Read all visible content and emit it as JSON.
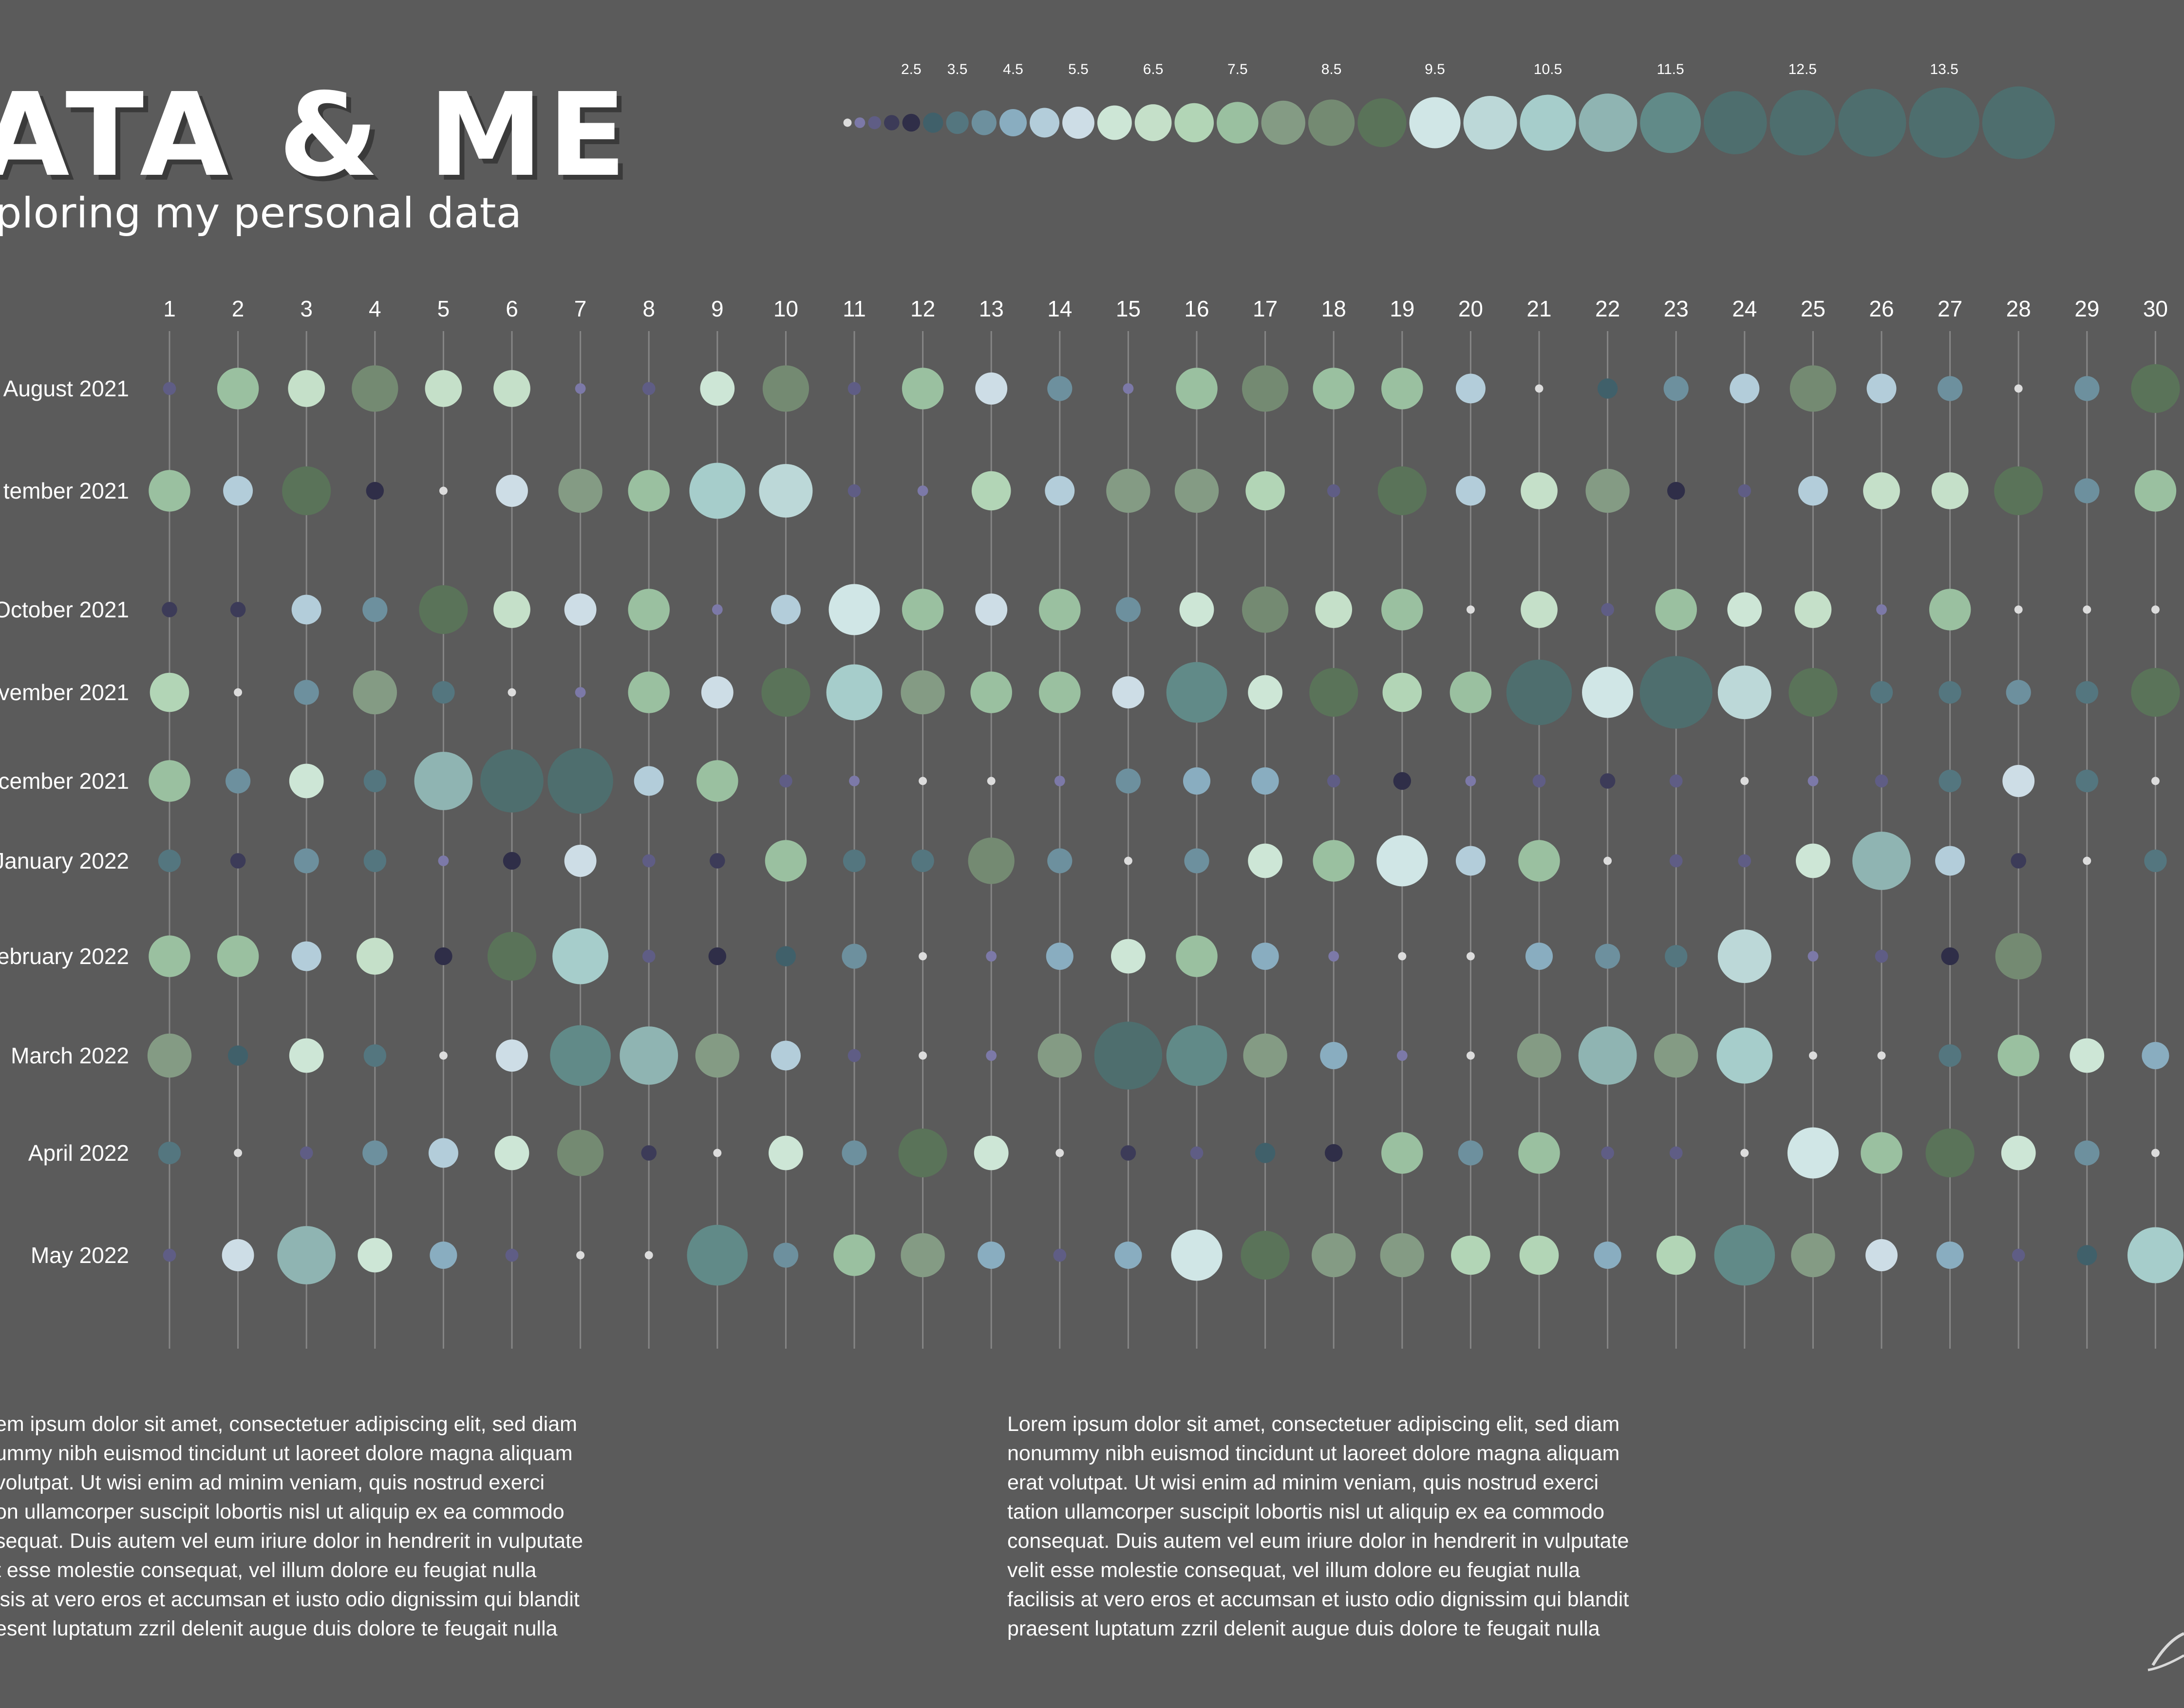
{
  "header": {
    "title": "ATA & ME",
    "subtitle": "ploring my personal data"
  },
  "paragraphs": [
    "em ipsum dolor sit amet, consectetuer adipiscing elit, sed diam\nummy nibh euismod tincidunt ut laoreet dolore magna aliquam\nvolutpat. Ut wisi enim ad minim veniam, quis nostrud exerci\non ullamcorper suscipit lobortis nisl ut aliquip ex ea commodo\nsequat. Duis autem vel eum iriure dolor in hendrerit in vulputate\nt esse molestie consequat, vel illum dolore eu feugiat nulla\nisis at vero eros et accumsan et iusto odio dignissim qui blandit\nesent luptatum zzril delenit augue duis dolore te feugait nulla",
    "Lorem ipsum dolor sit amet, consectetuer adipiscing elit, sed diam\nnonummy nibh euismod tincidunt ut laoreet dolore magna aliquam\nerat volutpat. Ut wisi enim ad minim veniam, quis nostrud exerci\ntation ullamcorper suscipit lobortis nisl ut aliquip ex ea commodo\nconsequat. Duis autem vel eum iriure dolor in hendrerit in vulputate\nvelit esse molestie consequat, vel illum dolore eu feugiat nulla\nfacilisis at vero eros et accumsan et iusto odio dignissim qui blandit\npraesent luptatum zzril delenit augue duis dolore te feugait nulla"
  ],
  "colors": {
    "background": "#5b5b5b",
    "gridline": "#868686",
    "text": "#ffffff",
    "palette": [
      "#8a84b0",
      "#7c79a8",
      "#5f5d85",
      "#3c3b58",
      "#2f2e48",
      "#40606a",
      "#54767f",
      "#6d909e",
      "#89adc0",
      "#b3cdda",
      "#cddde6",
      "#cde6d6",
      "#c5e0c9",
      "#b2d5b6",
      "#9ac0a0",
      "#849b84",
      "#748a72",
      "#5a7359",
      "#d0e6e6",
      "#bcd8d8",
      "#a6cdcb",
      "#8fb4b2",
      "#618a88",
      "#4e6e6e"
    ]
  },
  "chart_data": {
    "type": "scatter",
    "subtype": "calendar-bubble",
    "x": [
      1,
      2,
      3,
      4,
      5,
      6,
      7,
      8,
      9,
      10,
      11,
      12,
      13,
      14,
      15,
      16,
      17,
      18,
      19,
      20,
      21,
      22,
      23,
      24,
      25,
      26,
      27,
      28,
      29,
      30
    ],
    "y": [
      "August 2021",
      "tember 2021",
      "October 2021",
      "vember 2021",
      "cember 2021",
      "January 2022",
      "ebruary 2022",
      "March 2022",
      "April 2022",
      "May 2022"
    ],
    "size_legend": [
      "2.5",
      "3.5",
      "4.5",
      "5.5",
      "6.5",
      "7.5",
      "8.5",
      "9.5",
      "10.5",
      "11.5",
      "12.5",
      "13.5"
    ],
    "size_legend_values": [
      0.5,
      1,
      1.5,
      2,
      2.5,
      3,
      3.5,
      4,
      4.5,
      5,
      5.5,
      6,
      6.5,
      7,
      7.5,
      8,
      8.5,
      9,
      9.5,
      10,
      10.5,
      11,
      11.5,
      12,
      12.5,
      13,
      13.5,
      14
    ],
    "values": [
      [
        1.5,
        7.5,
        6.5,
        8.5,
        6.5,
        6.5,
        1,
        1.5,
        6,
        8.5,
        1.5,
        7.5,
        5.5,
        4,
        1,
        7.5,
        8.5,
        7.5,
        7.5,
        5,
        0.5,
        3,
        4,
        5,
        8.5,
        5,
        4,
        0.5,
        4,
        9
      ],
      [
        7.5,
        5,
        9,
        2.5,
        0.5,
        5.5,
        8,
        7.5,
        10.5,
        10,
        1.5,
        1,
        7,
        5,
        8,
        8,
        7,
        1.5,
        9,
        5,
        6.5,
        8,
        2.5,
        1.5,
        5,
        6.5,
        6.5,
        9,
        4,
        7.5
      ],
      [
        2,
        2,
        5,
        4,
        9,
        6.5,
        5.5,
        7.5,
        1,
        5,
        9.5,
        7.5,
        5.5,
        7.5,
        4,
        6,
        8.5,
        6.5,
        7.5,
        0.5,
        6.5,
        1.5,
        7.5,
        6,
        6.5,
        1,
        7.5,
        0.5,
        0.5,
        0.5
      ],
      [
        7,
        0.5,
        4,
        8,
        3.5,
        0.5,
        1,
        7.5,
        5.5,
        9,
        10.5,
        8,
        7.5,
        7.5,
        5.5,
        11.5,
        6,
        9,
        7,
        7.5,
        12.5,
        9.5,
        14,
        10,
        9,
        3.5,
        3.5,
        4,
        3.5,
        9
      ],
      [
        7.5,
        4,
        6,
        3.5,
        11,
        12,
        12.5,
        5,
        7.5,
        1.5,
        1,
        0.5,
        0.5,
        1,
        4,
        4.5,
        4.5,
        1.5,
        2.5,
        1,
        1.5,
        2,
        1.5,
        0.5,
        1,
        1.5,
        3.5,
        5.5,
        3.5,
        0.5
      ],
      [
        3.5,
        2,
        4,
        3.5,
        1,
        2.5,
        5.5,
        1.5,
        2,
        7.5,
        3.5,
        3.5,
        8.5,
        4,
        0.5,
        4,
        6,
        7.5,
        9.5,
        5,
        7.5,
        0.5,
        1.5,
        1.5,
        6,
        11,
        5,
        2,
        0.5,
        3.5
      ],
      [
        7.5,
        7.5,
        5,
        6.5,
        2.5,
        9,
        10.5,
        1.5,
        2.5,
        3,
        4,
        0.5,
        1,
        4.5,
        6,
        7.5,
        4.5,
        1,
        0.5,
        0.5,
        4.5,
        4,
        3.5,
        10,
        1,
        1.5,
        2.5,
        8.5,
        0,
        0
      ],
      [
        8,
        3,
        6,
        3.5,
        0.5,
        5.5,
        11.5,
        11,
        8,
        5,
        1.5,
        0.5,
        1,
        8,
        13,
        11.5,
        8,
        4.5,
        1,
        0.5,
        8,
        11,
        8,
        10.5,
        0.5,
        0.5,
        3.5,
        7.5,
        6,
        4.5
      ],
      [
        3.5,
        0.5,
        1.5,
        4,
        5,
        6,
        8.5,
        2,
        0.5,
        6,
        4,
        9,
        6,
        0.5,
        2,
        1.5,
        3,
        2.5,
        7.5,
        4,
        7.5,
        1.5,
        1.5,
        0.5,
        9.5,
        7.5,
        9,
        6,
        4,
        0.5
      ],
      [
        1.5,
        5.5,
        11,
        6,
        4.5,
        1.5,
        0.5,
        0.5,
        11.5,
        4,
        7.5,
        8,
        4.5,
        1.5,
        4.5,
        9.5,
        9,
        8,
        8,
        7,
        7,
        4.5,
        7,
        11.5,
        8,
        5.5,
        4.5,
        1.5,
        3,
        10.5
      ]
    ]
  }
}
